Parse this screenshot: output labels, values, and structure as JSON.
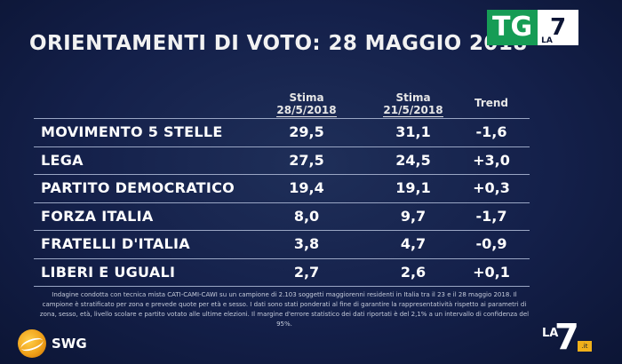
{
  "title": "ORIENTAMENTI DI VOTO: 28 MAGGIO 2018",
  "logo_top": {
    "tg": "TG",
    "la": "LA",
    "seven": "7"
  },
  "headers": {
    "col1_top": "Stima",
    "col1_bottom": "28/5/2018",
    "col2_top": "Stima",
    "col2_bottom": "21/5/2018",
    "col3": "Trend"
  },
  "rows": [
    {
      "party": "MOVIMENTO 5 STELLE",
      "stima_28": "29,5",
      "stima_21": "31,1",
      "trend": "-1,6"
    },
    {
      "party": "LEGA",
      "stima_28": "27,5",
      "stima_21": "24,5",
      "trend": "+3,0"
    },
    {
      "party": "PARTITO DEMOCRATICO",
      "stima_28": "19,4",
      "stima_21": "19,1",
      "trend": "+0,3"
    },
    {
      "party": "FORZA ITALIA",
      "stima_28": "8,0",
      "stima_21": "9,7",
      "trend": "-1,7"
    },
    {
      "party": "FRATELLI D'ITALIA",
      "stima_28": "3,8",
      "stima_21": "4,7",
      "trend": "-0,9"
    },
    {
      "party": "LIBERI E UGUALI",
      "stima_28": "2,7",
      "stima_21": "2,6",
      "trend": "+0,1"
    }
  ],
  "footnote": "Indagine condotta con tecnica mista CATI-CAMI-CAWI su un campione di 2.103 soggetti maggiorenni residenti in Italia tra il 23 e il 28 maggio 2018. Il campione è stratificato per zona e prevede quote per età e sesso. I dati sono stati ponderati al fine di garantire la rappresentatività rispetto ai parametri di zona, sesso, età, livello scolare e partito votato alle ultime elezioni. Il margine d'errore statistico dei dati riportati è del 2,1% a un intervallo di confidenza del 95%.",
  "swg_label": "SWG",
  "logo_bottom": {
    "la": "LA",
    "seven": "7",
    "it": ".it"
  }
}
